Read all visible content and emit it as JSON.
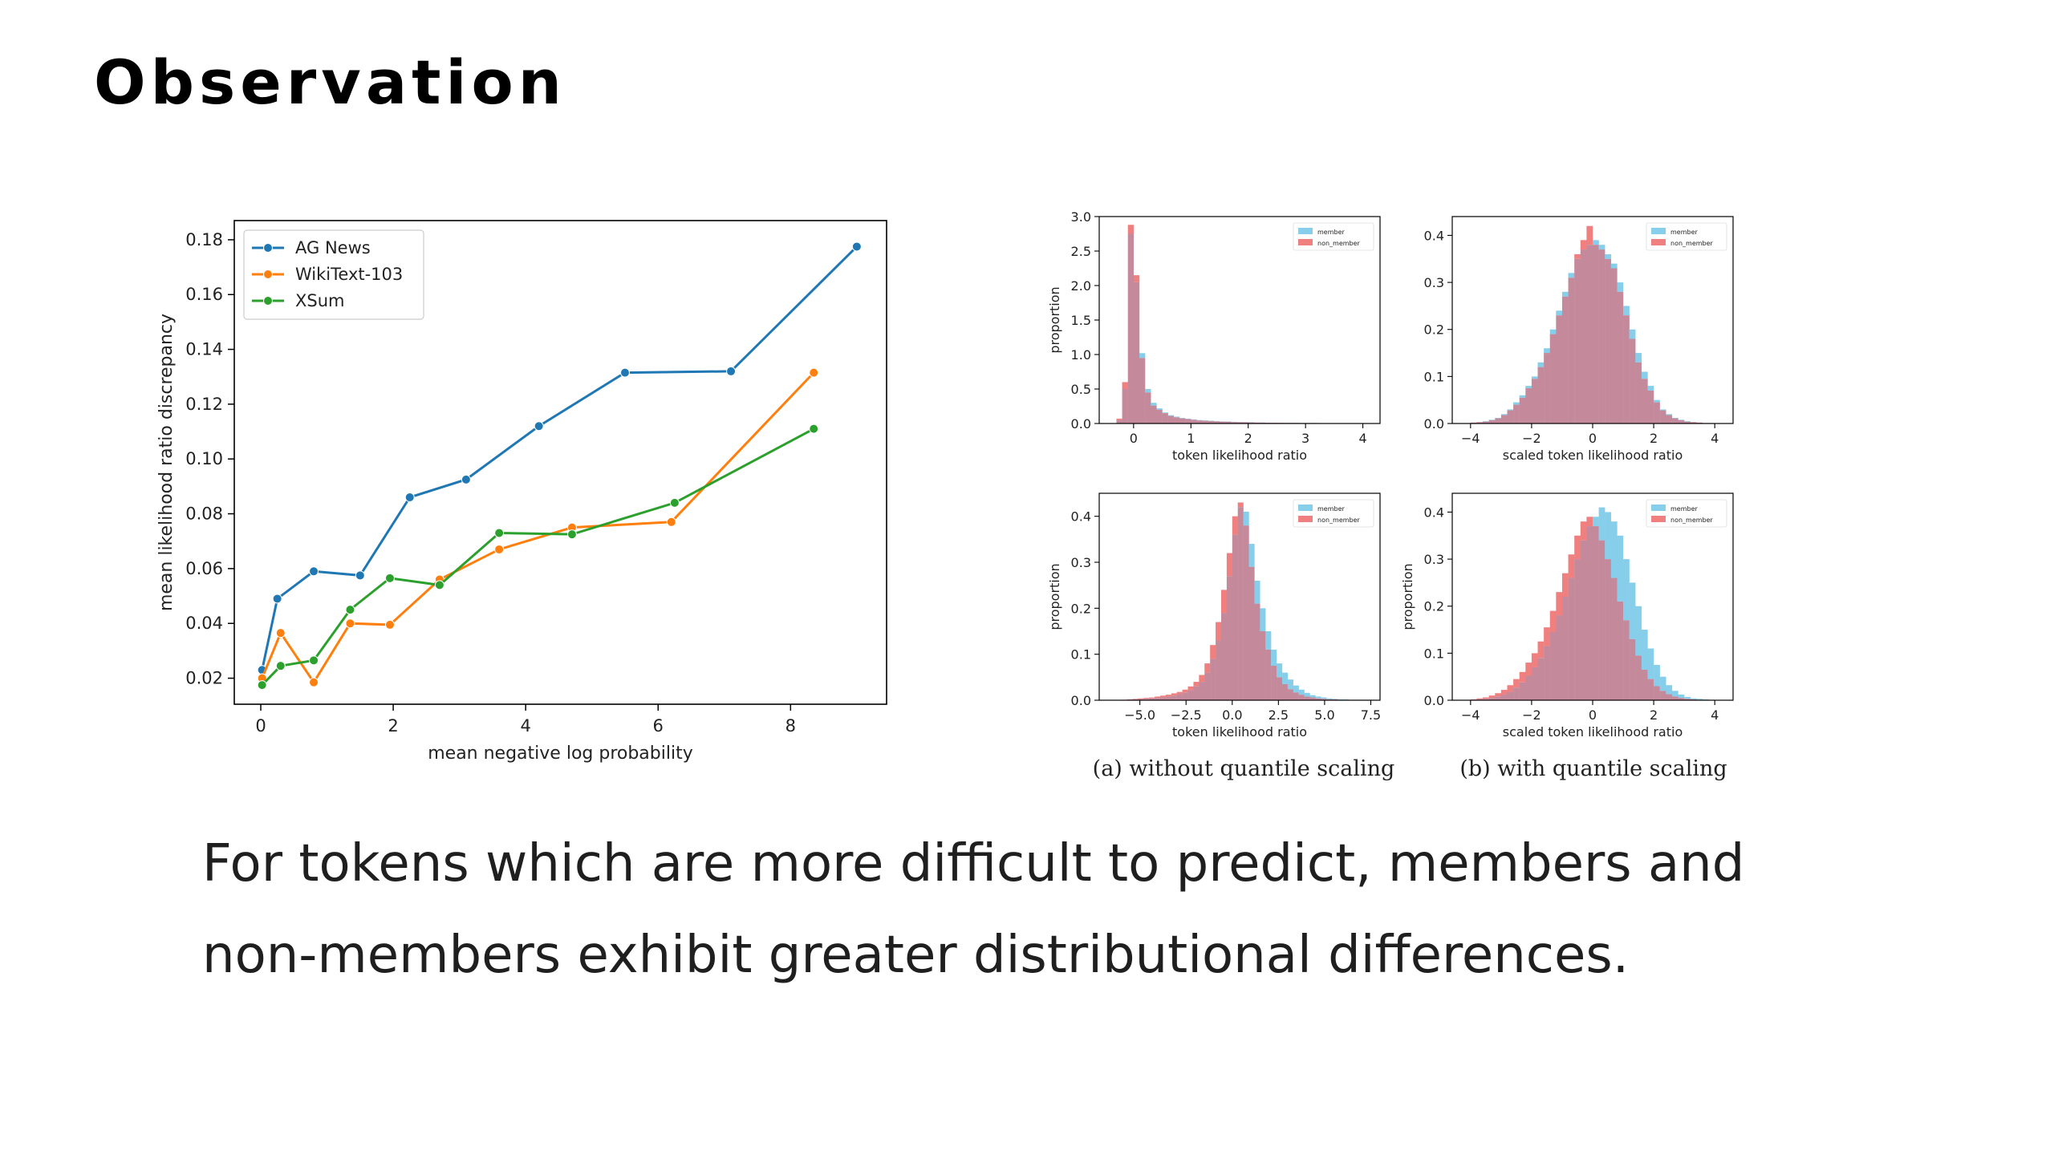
{
  "slide": {
    "title": "Observation",
    "caption_lines": [
      "For tokens which are more difficult to predict, members and",
      "non-members exhibit greater distributional differences."
    ]
  },
  "chart_data": [
    {
      "type": "line",
      "xlabel": "mean negative log probability",
      "ylabel": "mean likelihood ratio discrepancy",
      "xlim": [
        -0.4,
        9.45
      ],
      "ylim": [
        0.0105,
        0.187
      ],
      "xticks": [
        0,
        2,
        4,
        6,
        8
      ],
      "yticks": [
        0.02,
        0.04,
        0.06,
        0.08,
        0.1,
        0.12,
        0.14,
        0.16,
        0.18
      ],
      "grid": false,
      "legend_position": "top-left",
      "series": [
        {
          "name": "AG News",
          "color": "#1f77b4",
          "x": [
            0.02,
            0.25,
            0.8,
            1.5,
            2.25,
            3.1,
            4.2,
            5.5,
            7.1,
            9.0
          ],
          "y": [
            0.023,
            0.049,
            0.059,
            0.0575,
            0.086,
            0.0925,
            0.112,
            0.1315,
            0.132,
            0.1775
          ]
        },
        {
          "name": "WikiText-103",
          "color": "#ff7f0e",
          "x": [
            0.02,
            0.3,
            0.8,
            1.35,
            1.95,
            2.7,
            3.6,
            4.7,
            6.2,
            8.35
          ],
          "y": [
            0.02,
            0.0365,
            0.0185,
            0.04,
            0.0395,
            0.056,
            0.067,
            0.075,
            0.077,
            0.1315
          ]
        },
        {
          "name": "XSum",
          "color": "#2ca02c",
          "x": [
            0.02,
            0.3,
            0.8,
            1.35,
            1.95,
            2.7,
            3.6,
            4.7,
            6.25,
            8.35
          ],
          "y": [
            0.0175,
            0.0245,
            0.0265,
            0.045,
            0.0565,
            0.054,
            0.073,
            0.0725,
            0.084,
            0.111
          ]
        }
      ]
    },
    {
      "type": "histogram",
      "panel": "a-top",
      "xlabel": "token likelihood ratio",
      "ylabel": "proportion",
      "xlim": [
        -0.6,
        4.3
      ],
      "ylim": [
        0,
        3.0
      ],
      "xticks": [
        0,
        1,
        2,
        3,
        4
      ],
      "yticks": [
        0.0,
        0.5,
        1.0,
        1.5,
        2.0,
        2.5,
        3.0
      ],
      "legend": [
        "member",
        "non_member"
      ],
      "legend_position": "top-right",
      "bin_start": -0.3,
      "bin_width": 0.1,
      "member": [
        0.05,
        0.5,
        2.75,
        2.05,
        1.02,
        0.5,
        0.3,
        0.22,
        0.16,
        0.12,
        0.1,
        0.08,
        0.07,
        0.06,
        0.05,
        0.045,
        0.04,
        0.035,
        0.03,
        0.03,
        0.025,
        0.02,
        0.02,
        0.02,
        0.015,
        0.015,
        0.012,
        0.012,
        0.01,
        0.01,
        0.01,
        0.01,
        0.008,
        0.008,
        0.008,
        0.006,
        0.006,
        0.005,
        0.005,
        0.005,
        0.005,
        0.004,
        0.004,
        0.004
      ],
      "non_member": [
        0.07,
        0.6,
        2.88,
        2.15,
        0.95,
        0.45,
        0.26,
        0.2,
        0.15,
        0.11,
        0.09,
        0.075,
        0.065,
        0.055,
        0.045,
        0.04,
        0.035,
        0.03,
        0.028,
        0.025,
        0.02,
        0.02,
        0.018,
        0.015,
        0.014,
        0.012,
        0.011,
        0.01,
        0.01,
        0.009,
        0.008,
        0.008,
        0.007,
        0.007,
        0.006,
        0.006,
        0.005,
        0.005,
        0.005,
        0.004,
        0.004,
        0.004,
        0.003,
        0.003
      ]
    },
    {
      "type": "histogram",
      "panel": "b-top",
      "xlabel": "scaled token likelihood ratio",
      "ylabel": "",
      "xlim": [
        -4.6,
        4.6
      ],
      "ylim": [
        0,
        0.44
      ],
      "xticks": [
        -4,
        -2,
        0,
        2,
        4
      ],
      "yticks": [
        0.0,
        0.1,
        0.2,
        0.3,
        0.4
      ],
      "legend": [
        "member",
        "non_member"
      ],
      "legend_position": "top-right",
      "bin_start": -4.0,
      "bin_width": 0.2,
      "member": [
        0.002,
        0.003,
        0.005,
        0.008,
        0.012,
        0.02,
        0.03,
        0.045,
        0.06,
        0.08,
        0.1,
        0.13,
        0.16,
        0.2,
        0.24,
        0.28,
        0.32,
        0.35,
        0.37,
        0.38,
        0.39,
        0.38,
        0.36,
        0.34,
        0.3,
        0.25,
        0.2,
        0.15,
        0.11,
        0.08,
        0.05,
        0.03,
        0.02,
        0.012,
        0.008,
        0.005,
        0.003,
        0.002,
        0.001,
        0.001
      ],
      "non_member": [
        0.002,
        0.003,
        0.004,
        0.007,
        0.011,
        0.018,
        0.028,
        0.04,
        0.055,
        0.075,
        0.095,
        0.12,
        0.15,
        0.19,
        0.23,
        0.27,
        0.31,
        0.36,
        0.39,
        0.42,
        0.38,
        0.37,
        0.35,
        0.33,
        0.28,
        0.23,
        0.18,
        0.13,
        0.095,
        0.07,
        0.045,
        0.028,
        0.018,
        0.011,
        0.007,
        0.004,
        0.003,
        0.002,
        0.001,
        0.001
      ]
    },
    {
      "type": "histogram",
      "panel": "a-bottom",
      "xlabel": "token likelihood ratio",
      "ylabel": "proportion",
      "xlim": [
        -7.2,
        8.0
      ],
      "ylim": [
        0,
        0.45
      ],
      "xticks": [
        -5.0,
        -2.5,
        0.0,
        2.5,
        5.0,
        7.5
      ],
      "yticks": [
        0.0,
        0.1,
        0.2,
        0.3,
        0.4
      ],
      "legend": [
        "member",
        "non_member"
      ],
      "legend_position": "top-right",
      "bin_start": -6.0,
      "bin_width": 0.3,
      "member": [
        0.001,
        0.001,
        0.002,
        0.002,
        0.003,
        0.004,
        0.005,
        0.006,
        0.008,
        0.01,
        0.013,
        0.017,
        0.022,
        0.03,
        0.04,
        0.06,
        0.09,
        0.13,
        0.19,
        0.27,
        0.36,
        0.42,
        0.41,
        0.34,
        0.26,
        0.2,
        0.15,
        0.11,
        0.08,
        0.06,
        0.045,
        0.032,
        0.023,
        0.016,
        0.011,
        0.008,
        0.006,
        0.004,
        0.003,
        0.002,
        0.002,
        0.001,
        0.001,
        0.001,
        0.001,
        0.001
      ],
      "non_member": [
        0.001,
        0.002,
        0.003,
        0.004,
        0.005,
        0.006,
        0.008,
        0.01,
        0.012,
        0.015,
        0.018,
        0.023,
        0.03,
        0.04,
        0.055,
        0.08,
        0.12,
        0.17,
        0.24,
        0.32,
        0.4,
        0.43,
        0.38,
        0.29,
        0.21,
        0.15,
        0.11,
        0.075,
        0.05,
        0.035,
        0.024,
        0.017,
        0.012,
        0.008,
        0.006,
        0.004,
        0.003,
        0.002,
        0.002,
        0.001,
        0.001,
        0.001,
        0.001,
        0.001,
        0.001,
        0.001
      ]
    },
    {
      "type": "histogram",
      "panel": "b-bottom",
      "xlabel": "scaled token likelihood ratio",
      "ylabel": "proportion",
      "xlim": [
        -4.6,
        4.6
      ],
      "ylim": [
        0,
        0.44
      ],
      "xticks": [
        -4,
        -2,
        0,
        2,
        4
      ],
      "yticks": [
        0.0,
        0.1,
        0.2,
        0.3,
        0.4
      ],
      "legend": [
        "member",
        "non_member"
      ],
      "legend_position": "top-right",
      "bin_start": -4.0,
      "bin_width": 0.2,
      "member": [
        0.001,
        0.002,
        0.003,
        0.005,
        0.008,
        0.012,
        0.018,
        0.027,
        0.038,
        0.052,
        0.07,
        0.09,
        0.115,
        0.145,
        0.18,
        0.22,
        0.26,
        0.3,
        0.34,
        0.37,
        0.39,
        0.41,
        0.4,
        0.38,
        0.35,
        0.3,
        0.25,
        0.2,
        0.15,
        0.11,
        0.075,
        0.05,
        0.032,
        0.02,
        0.012,
        0.007,
        0.004,
        0.003,
        0.002,
        0.001
      ],
      "non_member": [
        0.002,
        0.004,
        0.006,
        0.01,
        0.015,
        0.022,
        0.032,
        0.045,
        0.06,
        0.08,
        0.1,
        0.125,
        0.155,
        0.19,
        0.23,
        0.27,
        0.31,
        0.35,
        0.38,
        0.39,
        0.37,
        0.34,
        0.3,
        0.26,
        0.21,
        0.17,
        0.13,
        0.095,
        0.065,
        0.045,
        0.03,
        0.02,
        0.013,
        0.008,
        0.005,
        0.003,
        0.002,
        0.001,
        0.001,
        0.001
      ]
    }
  ],
  "subcaptions": {
    "a": "(a) without quantile scaling",
    "b": "(b) with quantile scaling"
  },
  "colors": {
    "member": "#87ceeb",
    "non_member": "#f08080",
    "overlap": "#c48a9b"
  }
}
